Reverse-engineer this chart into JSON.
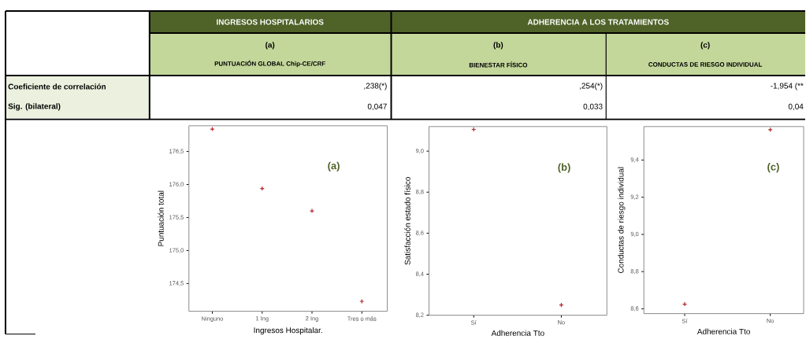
{
  "chart_data": [
    {
      "type": "other",
      "annotations": [
        "INGRESOS HOSPITALARIOS",
        "ADHERENCIA A LOS TRATAMIENTOS",
        "(a)",
        "PUNTUACIÓN GLOBAL Chip-CE/CRF",
        "(b)",
        "BIENESTAR FÍSICO",
        "(c)",
        "CONDUCTAS DE RIESGO INDIVIDUAL",
        "Coeficiente de correlación",
        "Sig. (bilateral)",
        ",238(*)",
        "0,047",
        ",254(*)",
        "0,033",
        "-1,954 (**",
        "0,04"
      ]
    },
    {
      "type": "scatter",
      "categories": [
        "Ninguno",
        "1 Ing",
        "2 Ing",
        "Tres o más"
      ],
      "values": [
        176.84,
        175.94,
        175.6,
        174.23
      ],
      "color": "#b2282e",
      "marker": "cross",
      "xlabel": "Ingresos Hospitalar.",
      "ylabel": "Puntuación total",
      "annotations": [
        "(a)"
      ],
      "ylim": [
        174.08,
        176.89
      ],
      "yticks": [
        {
          "value": 174.5,
          "label": "174,5"
        },
        {
          "value": 175.0,
          "label": "175,0"
        },
        {
          "value": 175.5,
          "label": "175,5"
        },
        {
          "value": 176.0,
          "label": "176,0"
        },
        {
          "value": 176.5,
          "label": "176,5"
        }
      ]
    },
    {
      "type": "scatter",
      "categories": [
        "Sí",
        "No"
      ],
      "values": [
        9.106,
        8.25
      ],
      "color": "#b2282e",
      "marker": "cross",
      "xlabel": "Adherencia Tto",
      "ylabel": "Satisfacción estado físico",
      "annotations": [
        "(b)"
      ],
      "ylim": [
        8.2,
        9.12
      ],
      "yticks": [
        {
          "value": 8.2,
          "label": "8,2"
        },
        {
          "value": 8.4,
          "label": "8,4"
        },
        {
          "value": 8.6,
          "label": "8,6"
        },
        {
          "value": 8.8,
          "label": "8,8"
        },
        {
          "value": 9.0,
          "label": "9,0"
        }
      ]
    },
    {
      "type": "scatter",
      "categories": [
        "Sí",
        "No"
      ],
      "values": [
        8.625,
        9.563
      ],
      "color": "#b2282e",
      "marker": "cross",
      "xlabel": "Adherencia Tto",
      "ylabel": "Conductas de riesgo individual",
      "annotations": [
        "(c)"
      ],
      "ylim": [
        8.574,
        9.58
      ],
      "yticks": [
        {
          "value": 8.6,
          "label": "8,6"
        },
        {
          "value": 8.8,
          "label": "8,8"
        },
        {
          "value": 9.0,
          "label": "9,0"
        },
        {
          "value": 9.2,
          "label": "9,2"
        },
        {
          "value": 9.4,
          "label": "9,4"
        }
      ]
    }
  ]
}
